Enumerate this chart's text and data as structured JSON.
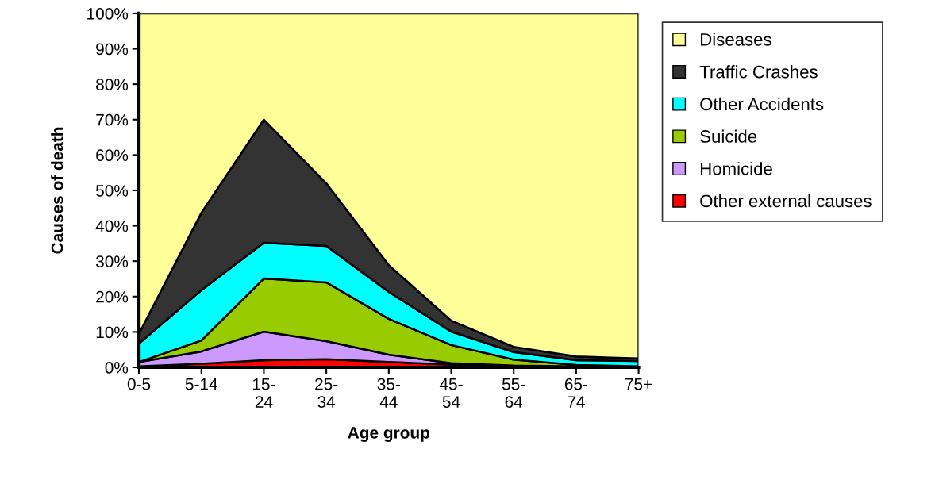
{
  "chart_data": {
    "type": "area",
    "stacked": true,
    "xlabel": "Age group",
    "ylabel": "Causes of death",
    "categories": [
      "0-5",
      "5-14",
      "15-\n24",
      "25-\n34",
      "35-\n44",
      "45-\n54",
      "55-\n64",
      "65-\n74",
      "75+"
    ],
    "series": [
      {
        "name": "Other external causes",
        "color": "#ff0000",
        "values": [
          0.3,
          1,
          2,
          2.3,
          1.5,
          0.8,
          0.3,
          0.2,
          0.2
        ]
      },
      {
        "name": "Homicide",
        "color": "#cc99ff",
        "values": [
          1.2,
          3.5,
          8.1,
          5.1,
          2.1,
          0.4,
          0.2,
          0.1,
          0
        ]
      },
      {
        "name": "Suicide",
        "color": "#99cc00",
        "values": [
          0,
          3.1,
          15,
          16.6,
          10.1,
          5.1,
          1.7,
          0.4,
          0.1
        ]
      },
      {
        "name": "Other Accidents",
        "color": "#00ffff",
        "values": [
          5.2,
          14.2,
          10.1,
          10.3,
          7.6,
          3.8,
          2.1,
          1.3,
          1.5
        ]
      },
      {
        "name": "Traffic Crashes",
        "color": "#333333",
        "values": [
          2.8,
          21.9,
          34.8,
          17.7,
          7.6,
          3.1,
          1.5,
          1.1,
          0.7
        ]
      },
      {
        "name": "Diseases",
        "color": "#ffff99",
        "values": [
          90.5,
          56.3,
          30,
          48,
          71.1,
          86.8,
          94.2,
          96.9,
          97.5
        ]
      }
    ],
    "ylim": [
      0,
      100
    ],
    "yticks": [
      {
        "value": 0,
        "label": "0%"
      },
      {
        "value": 10,
        "label": "10%"
      },
      {
        "value": 20,
        "label": "20%"
      },
      {
        "value": 30,
        "label": "30%"
      },
      {
        "value": 40,
        "label": "40%"
      },
      {
        "value": 50,
        "label": "50%"
      },
      {
        "value": 60,
        "label": "60%"
      },
      {
        "value": 70,
        "label": "70%"
      },
      {
        "value": 80,
        "label": "80%"
      },
      {
        "value": 90,
        "label": "90%"
      },
      {
        "value": 100,
        "label": "100%"
      }
    ],
    "grid": false,
    "legend": "top right"
  }
}
